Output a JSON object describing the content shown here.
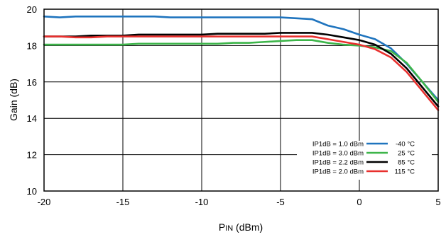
{
  "chart_data": {
    "type": "line",
    "xlabel": "PIN (dBm)",
    "ylabel": "Gain (dB)",
    "xlim": [
      -20,
      5
    ],
    "ylim": [
      10,
      20
    ],
    "xticks": [
      -20,
      -15,
      -10,
      -5,
      0,
      5
    ],
    "yticks": [
      10,
      12,
      14,
      16,
      18,
      20
    ],
    "xtick_labels": [
      "-20",
      "-15",
      "-10",
      "-5",
      "0",
      "5"
    ],
    "ytick_labels": [
      "10",
      "12",
      "14",
      "16",
      "18",
      "20"
    ],
    "grid": true,
    "legend_position": "bottom-right",
    "series": [
      {
        "name": "-40 °C",
        "label": "IP1dB = 1.0 dBm",
        "color": "#1f74be",
        "x": [
          -20,
          -19,
          -18,
          -17,
          -16,
          -15,
          -14,
          -13,
          -12,
          -11,
          -10,
          -9,
          -8,
          -7,
          -6,
          -5,
          -4,
          -3,
          -2,
          -1,
          0,
          1,
          2,
          3,
          4,
          5
        ],
        "y": [
          19.6,
          19.55,
          19.6,
          19.6,
          19.6,
          19.6,
          19.6,
          19.6,
          19.55,
          19.55,
          19.55,
          19.55,
          19.55,
          19.55,
          19.55,
          19.55,
          19.5,
          19.45,
          19.1,
          18.9,
          18.6,
          18.35,
          17.85,
          17.0,
          16.0,
          15.0
        ]
      },
      {
        "name": "25 °C",
        "label": "IP1dB = 3.0 dBm",
        "color": "#3db54a",
        "x": [
          -20,
          -19,
          -18,
          -17,
          -16,
          -15,
          -14,
          -13,
          -12,
          -11,
          -10,
          -9,
          -8,
          -7,
          -6,
          -5,
          -4,
          -3,
          -2,
          -1,
          0,
          1,
          2,
          3,
          4,
          5
        ],
        "y": [
          18.05,
          18.05,
          18.05,
          18.05,
          18.05,
          18.05,
          18.1,
          18.1,
          18.1,
          18.1,
          18.1,
          18.1,
          18.15,
          18.15,
          18.2,
          18.25,
          18.3,
          18.3,
          18.15,
          18.05,
          18.0,
          17.9,
          17.7,
          17.05,
          16.0,
          14.9
        ]
      },
      {
        "name": "85 °C",
        "label": "IP1dB = 2.2 dBm",
        "color": "#000000",
        "x": [
          -20,
          -19,
          -18,
          -17,
          -16,
          -15,
          -14,
          -13,
          -12,
          -11,
          -10,
          -9,
          -8,
          -7,
          -6,
          -5,
          -4,
          -3,
          -2,
          -1,
          0,
          1,
          2,
          3,
          4,
          5
        ],
        "y": [
          18.5,
          18.5,
          18.5,
          18.55,
          18.55,
          18.55,
          18.6,
          18.6,
          18.6,
          18.6,
          18.6,
          18.65,
          18.65,
          18.65,
          18.65,
          18.7,
          18.7,
          18.7,
          18.6,
          18.45,
          18.3,
          18.05,
          17.55,
          16.75,
          15.7,
          14.65
        ]
      },
      {
        "name": "115 °C",
        "label": "IP1dB = 2.0 dBm",
        "color": "#e8302e",
        "x": [
          -20,
          -19,
          -18,
          -17,
          -16,
          -15,
          -14,
          -13,
          -12,
          -11,
          -10,
          -9,
          -8,
          -7,
          -6,
          -5,
          -4,
          -3,
          -2,
          -1,
          0,
          1,
          2,
          3,
          4,
          5
        ],
        "y": [
          18.5,
          18.5,
          18.45,
          18.45,
          18.5,
          18.5,
          18.5,
          18.5,
          18.5,
          18.5,
          18.5,
          18.5,
          18.5,
          18.5,
          18.5,
          18.5,
          18.5,
          18.5,
          18.35,
          18.2,
          18.05,
          17.8,
          17.35,
          16.55,
          15.5,
          14.45
        ]
      }
    ]
  }
}
